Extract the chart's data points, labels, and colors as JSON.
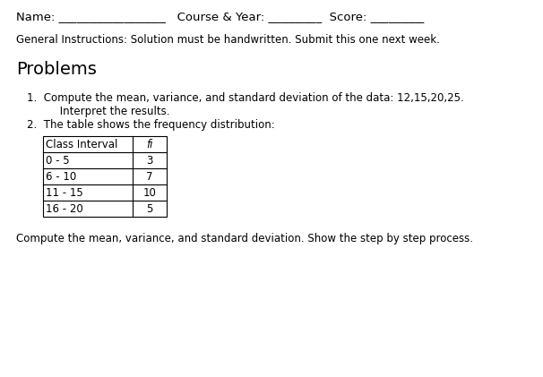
{
  "background_color": "#ffffff",
  "name_line": "Name: __________________   Course & Year: _________  Score: _________",
  "instructions": "General Instructions: Solution must be handwritten. Submit this one next week.",
  "section_title": "Problems",
  "problem1_line1": "1.  Compute the mean, variance, and standard deviation of the data: 12,15,20,25.",
  "problem1_line2": "     Interpret the results.",
  "problem2_line1": "2.  The table shows the frequency distribution:",
  "table_col1_header": "Class Interval",
  "table_col2_header": "fi",
  "table_rows": [
    [
      "0 - 5",
      "3"
    ],
    [
      "6 - 10",
      "7"
    ],
    [
      "11 - 15",
      "10"
    ],
    [
      "16 - 20",
      "5"
    ]
  ],
  "footer": "Compute the mean, variance, and standard deviation. Show the step by step process.",
  "font_color": "#000000",
  "name_fontsize": 9.5,
  "body_fontsize": 8.5,
  "problems_fontsize": 14,
  "table_fontsize": 8.5
}
